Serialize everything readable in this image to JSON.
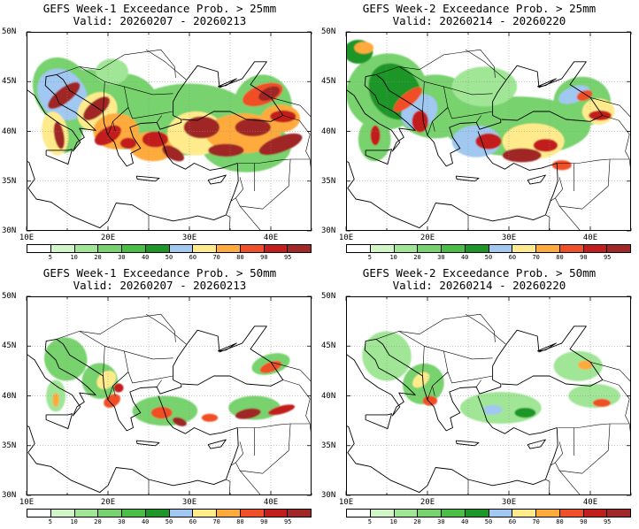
{
  "panels": [
    {
      "title": "GEFS Week-1 Exceedance Prob. > 25mm",
      "valid": "Valid: 20260207 - 20260213",
      "threshold": 25,
      "week": 1
    },
    {
      "title": "GEFS Week-2 Exceedance Prob. > 25mm",
      "valid": "Valid: 20260214 - 20260220",
      "threshold": 25,
      "week": 2
    },
    {
      "title": "GEFS Week-1 Exceedance Prob. > 50mm",
      "valid": "Valid: 20260207 - 20260213",
      "threshold": 50,
      "week": 1
    },
    {
      "title": "GEFS Week-2 Exceedance Prob. > 50mm",
      "valid": "Valid: 20260214 - 20260220",
      "threshold": 50,
      "week": 2
    }
  ],
  "axes": {
    "lat_labels": [
      "50N",
      "45N",
      "40N",
      "35N",
      "30N"
    ],
    "lon_labels": [
      "10E",
      "20E",
      "30E",
      "40E"
    ]
  },
  "colorbar": {
    "labels": [
      "5",
      "10",
      "20",
      "30",
      "40",
      "50",
      "60",
      "70",
      "80",
      "90",
      "95"
    ],
    "colors": [
      "#ffffff",
      "#d2f5c8",
      "#a0e696",
      "#78d26e",
      "#4bbe46",
      "#1e9628",
      "#a0c8f0",
      "#ffeb8c",
      "#ffaa3c",
      "#f05028",
      "#c31e1e",
      "#a02828"
    ]
  },
  "map_colors": {
    "land": "#ffffff",
    "coast": "#000000",
    "grid": "#8c8c8c"
  }
}
